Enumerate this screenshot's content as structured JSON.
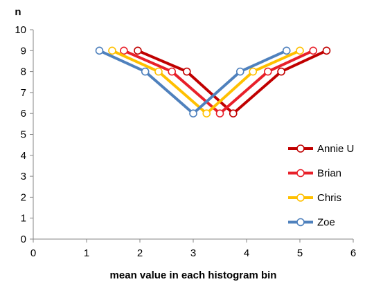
{
  "chart_data": {
    "type": "line",
    "xlabel": "mean value in each histogram bin",
    "ylabel": "n",
    "xlim": [
      0,
      6
    ],
    "ylim": [
      0,
      10
    ],
    "xticks": [
      "0",
      "1",
      "2",
      "3",
      "4",
      "5",
      "6"
    ],
    "yticks": [
      "0",
      "1",
      "2",
      "3",
      "4",
      "5",
      "6",
      "7",
      "8",
      "9",
      "10"
    ],
    "grid": false,
    "legend_position": "right",
    "series": [
      {
        "name": "Annie U",
        "color": "#C00000",
        "points": [
          [
            1.96,
            9
          ],
          [
            2.88,
            8
          ],
          [
            3.75,
            6
          ],
          [
            4.65,
            8
          ],
          [
            5.5,
            9
          ]
        ]
      },
      {
        "name": "Brian",
        "color": "#E8202A",
        "points": [
          [
            1.7,
            9
          ],
          [
            2.6,
            8
          ],
          [
            3.5,
            6
          ],
          [
            4.4,
            8
          ],
          [
            5.25,
            9
          ]
        ]
      },
      {
        "name": "Chris",
        "color": "#FFC000",
        "points": [
          [
            1.48,
            9
          ],
          [
            2.35,
            8
          ],
          [
            3.25,
            6
          ],
          [
            4.12,
            8
          ],
          [
            5.0,
            9
          ]
        ]
      },
      {
        "name": "Zoe",
        "color": "#4F81BD",
        "points": [
          [
            1.24,
            9
          ],
          [
            2.1,
            8
          ],
          [
            3.0,
            6
          ],
          [
            3.88,
            8
          ],
          [
            4.75,
            9
          ]
        ]
      }
    ]
  }
}
